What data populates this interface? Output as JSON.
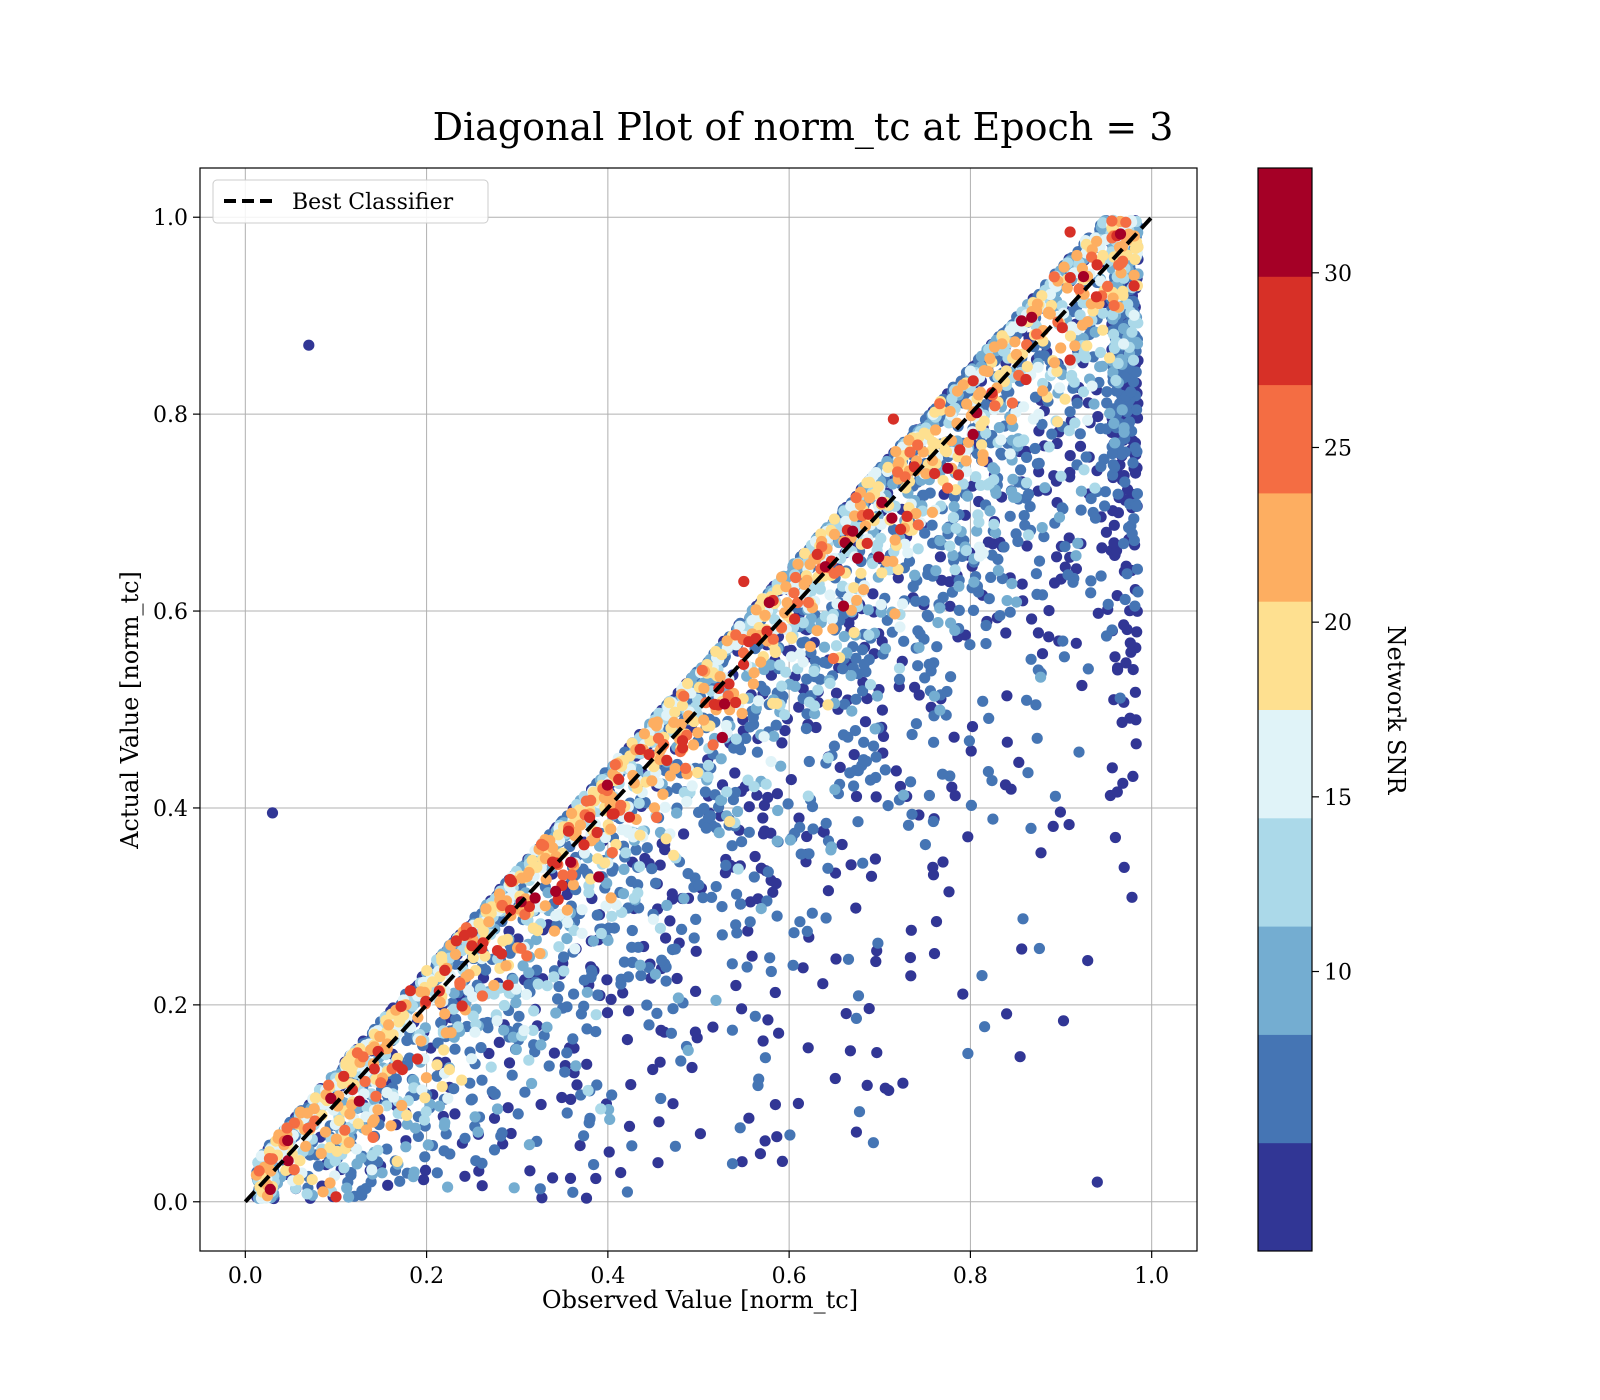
{
  "chart_data": {
    "type": "scatter",
    "title": "Diagonal Plot of norm_tc at Epoch = 3",
    "xlabel": "Observed Value [norm_tc]",
    "ylabel": "Actual Value [norm_tc]",
    "xlim": [
      -0.05,
      1.05
    ],
    "ylim": [
      -0.05,
      1.05
    ],
    "xticks": [
      "0.0",
      "0.2",
      "0.4",
      "0.6",
      "0.8",
      "1.0"
    ],
    "yticks": [
      "0.0",
      "0.2",
      "0.4",
      "0.6",
      "0.8",
      "1.0"
    ],
    "grid": true,
    "legend": {
      "position": "upper-left",
      "entries": [
        "Best Classifier"
      ]
    },
    "reference_line": {
      "name": "Best Classifier",
      "x": [
        0.0,
        1.0
      ],
      "y": [
        0.0,
        1.0
      ],
      "style": "dashed",
      "color": "#000000"
    },
    "colorbar": {
      "label": "Network SNR",
      "range": [
        2.0,
        33.0
      ],
      "ticks": [
        10,
        15,
        20,
        25,
        30
      ],
      "tick_labels": [
        "10",
        "15",
        "20",
        "25",
        "30"
      ],
      "bins": 10,
      "colormap": [
        "#313695",
        "#4575b4",
        "#74add1",
        "#abd9e9",
        "#e0f3f8",
        "#fee090",
        "#fdae61",
        "#f46d43",
        "#d73027",
        "#a50026"
      ]
    },
    "points_note": "Dense scatter: values clustered along y = x for high SNR, spread widely for low SNR",
    "sample_points": [
      {
        "x": 0.1,
        "y": 0.005,
        "snr": 28
      },
      {
        "x": 0.19,
        "y": 0.145,
        "snr": 29
      },
      {
        "x": 0.39,
        "y": 0.33,
        "snr": 32
      },
      {
        "x": 0.29,
        "y": 0.22,
        "snr": 29
      },
      {
        "x": 0.25,
        "y": 0.26,
        "snr": 29
      },
      {
        "x": 0.55,
        "y": 0.63,
        "snr": 29
      },
      {
        "x": 0.64,
        "y": 0.645,
        "snr": 32
      },
      {
        "x": 0.66,
        "y": 0.605,
        "snr": 32
      },
      {
        "x": 0.715,
        "y": 0.795,
        "snr": 29
      },
      {
        "x": 0.775,
        "y": 0.745,
        "snr": 32
      },
      {
        "x": 0.91,
        "y": 0.985,
        "snr": 29
      },
      {
        "x": 0.91,
        "y": 0.855,
        "snr": 29
      },
      {
        "x": 0.95,
        "y": 0.68,
        "snr": 3
      },
      {
        "x": 0.96,
        "y": 0.37,
        "snr": 3
      },
      {
        "x": 0.94,
        "y": 0.02,
        "snr": 3
      },
      {
        "x": 0.07,
        "y": 0.87,
        "snr": 3
      },
      {
        "x": 0.03,
        "y": 0.395,
        "snr": 5
      }
    ]
  }
}
